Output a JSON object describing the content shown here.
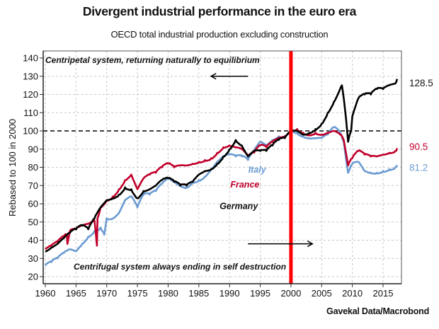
{
  "chart_data": {
    "type": "line",
    "title": "Divergent industrial performance in the euro era",
    "subtitle": "OECD total industrial production excluding construction",
    "source": "Gavekal Data/Macrobond",
    "xlabel": "",
    "ylabel": "Rebased to 100 in 2000",
    "xlim": [
      1959.7,
      2018.1
    ],
    "ylim": [
      16,
      144
    ],
    "x_ticks": [
      1960,
      1965,
      1970,
      1975,
      1980,
      1985,
      1990,
      1995,
      2000,
      2005,
      2010,
      2015
    ],
    "y_ticks": [
      20,
      30,
      40,
      50,
      60,
      70,
      80,
      90,
      100,
      110,
      120,
      130,
      140
    ],
    "grid": true,
    "reference_line": {
      "y": 100,
      "style": "dashed",
      "color": "#000000"
    },
    "vertical_marker": {
      "x": 2000,
      "color": "#ff0000"
    },
    "annotations": [
      {
        "text": "Centripetal system, returning naturally to equilibrium",
        "position": "top-left"
      },
      {
        "text": "Centrifugal system always ending in self destruction",
        "position": "bottom-center"
      },
      {
        "text": "arrow-left",
        "from_x": 1993,
        "to_x": 1987,
        "y": 130
      },
      {
        "text": "arrow-right",
        "from_x": 1993,
        "to_x": 2003.5,
        "y": 38
      }
    ],
    "series": [
      {
        "name": "Germany",
        "color": "#000000",
        "end_label": "128.5",
        "x": [
          1960,
          1961,
          1962,
          1963,
          1964,
          1965,
          1966,
          1967,
          1968,
          1969,
          1970,
          1971,
          1972,
          1973,
          1974,
          1975,
          1976,
          1977,
          1978,
          1979,
          1980,
          1981,
          1982,
          1983,
          1984,
          1985,
          1986,
          1987,
          1988,
          1989,
          1990,
          1991,
          1992,
          1993,
          1994,
          1995,
          1996,
          1997,
          1998,
          1999,
          2000,
          2001,
          2002,
          2003,
          2004,
          2005,
          2006,
          2007,
          2008,
          2008.3,
          2008.8,
          2009.3,
          2009.8,
          2010,
          2011,
          2012,
          2013,
          2014,
          2015,
          2016,
          2017,
          2017.3
        ],
        "values": [
          34,
          36,
          38,
          41,
          44,
          46,
          48,
          46,
          52,
          58,
          62,
          63,
          65,
          69,
          68,
          63,
          67,
          68,
          70,
          73,
          74,
          72,
          70,
          70,
          72,
          76,
          78,
          79,
          82,
          86,
          90,
          95,
          92,
          86,
          89,
          89,
          89,
          92,
          95,
          96,
          100,
          100,
          98,
          99,
          101,
          104,
          110,
          116,
          123,
          125,
          112,
          94,
          100,
          108,
          118,
          120,
          120,
          123,
          123,
          125,
          126,
          128.5
        ]
      },
      {
        "name": "France",
        "color": "#c0002a",
        "end_label": "90.5",
        "x": [
          1960,
          1961,
          1962,
          1963,
          1963.5,
          1963.6,
          1964,
          1965,
          1966,
          1967,
          1968,
          1968.4,
          1968.5,
          1969,
          1970,
          1971,
          1972,
          1973,
          1974,
          1975,
          1976,
          1977,
          1978,
          1979,
          1980,
          1981,
          1982,
          1983,
          1984,
          1985,
          1986,
          1987,
          1988,
          1989,
          1990,
          1991,
          1992,
          1993,
          1994,
          1995,
          1996,
          1997,
          1998,
          1999,
          2000,
          2001,
          2002,
          2003,
          2004,
          2005,
          2006,
          2007,
          2008,
          2008.6,
          2009.3,
          2010,
          2011,
          2012,
          2013,
          2014,
          2015,
          2016,
          2017,
          2017.3
        ],
        "values": [
          35,
          37,
          39,
          42,
          43,
          38,
          45,
          46,
          48,
          49,
          51,
          37,
          52,
          58,
          62,
          64,
          68,
          73,
          76,
          68,
          74,
          76,
          77,
          80,
          82,
          80,
          81,
          81,
          82,
          83,
          84,
          85,
          88,
          91,
          92,
          91,
          90,
          86,
          88,
          92,
          91,
          94,
          96,
          97,
          100,
          101,
          99,
          98,
          99,
          98,
          99,
          100,
          98,
          95,
          81,
          85,
          89,
          87,
          86,
          86,
          87,
          88,
          89,
          90.5
        ]
      },
      {
        "name": "Italy",
        "color": "#6b9bd2",
        "end_label": "81.2",
        "x": [
          1960,
          1961,
          1962,
          1963,
          1964,
          1965,
          1965.5,
          1966,
          1967,
          1968,
          1969,
          1969.6,
          1970,
          1971,
          1972,
          1973,
          1974,
          1975,
          1976,
          1977,
          1978,
          1979,
          1980,
          1981,
          1982,
          1983,
          1984,
          1985,
          1986,
          1987,
          1988,
          1989,
          1990,
          1991,
          1992,
          1993,
          1994,
          1995,
          1996,
          1997,
          1998,
          1999,
          2000,
          2001,
          2002,
          2003,
          2004,
          2005,
          2006,
          2007,
          2008,
          2008.6,
          2009.3,
          2010,
          2011,
          2012,
          2013,
          2014,
          2015,
          2016,
          2017,
          2017.3
        ],
        "values": [
          26,
          28,
          30,
          33,
          35,
          34,
          36,
          38,
          42,
          45,
          47,
          43,
          52,
          52,
          55,
          62,
          64,
          58,
          65,
          65,
          67,
          71,
          74,
          72,
          70,
          69,
          72,
          73,
          75,
          79,
          83,
          86,
          87,
          86,
          86,
          84,
          89,
          94,
          92,
          95,
          97,
          97,
          101,
          99,
          97,
          96,
          96,
          96,
          98,
          102,
          99,
          94,
          77,
          82,
          83,
          78,
          77,
          77,
          78,
          79,
          80,
          81.2
        ]
      }
    ],
    "series_labels": [
      {
        "name": "Italy",
        "x": 1994.5,
        "y": 77
      },
      {
        "name": "France",
        "x": 1992.5,
        "y": 69
      },
      {
        "name": "Germany",
        "x": 1991.5,
        "y": 57
      }
    ]
  }
}
